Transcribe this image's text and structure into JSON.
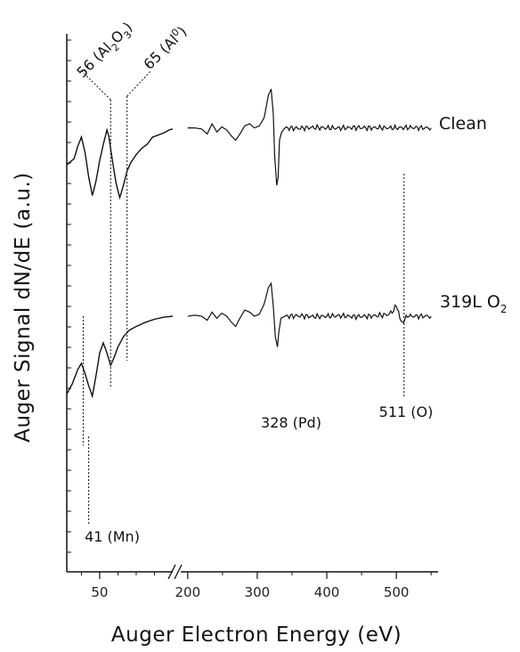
{
  "chart_data": {
    "type": "line",
    "xlabel": "Auger Electron Energy (eV)",
    "ylabel": "Auger Signal dN/dE (a.u.)",
    "x_axis_break": true,
    "x_segments": [
      {
        "range": [
          32,
          90
        ],
        "ticks": [
          50
        ]
      },
      {
        "range": [
          190,
          560
        ],
        "ticks": [
          200,
          300,
          400,
          500
        ]
      }
    ],
    "grid": false,
    "series": [
      {
        "name": "Clean",
        "segment1": [
          [
            32,
            0
          ],
          [
            36,
            0.3
          ],
          [
            38,
            0.9
          ],
          [
            40,
            1.35
          ],
          [
            42,
            0.6
          ],
          [
            44,
            -0.6
          ],
          [
            46,
            -1.5
          ],
          [
            48,
            -0.8
          ],
          [
            50,
            0.2
          ],
          [
            52,
            1.0
          ],
          [
            54,
            1.7
          ],
          [
            55,
            1.4
          ],
          [
            57,
            0.2
          ],
          [
            59,
            -0.9
          ],
          [
            61,
            -1.6
          ],
          [
            63,
            -1.0
          ],
          [
            65,
            -0.3
          ],
          [
            67,
            0.1
          ],
          [
            70,
            0.5
          ],
          [
            73,
            0.8
          ],
          [
            76,
            1.0
          ],
          [
            79,
            1.35
          ],
          [
            82,
            1.45
          ],
          [
            85,
            1.55
          ],
          [
            88,
            1.7
          ],
          [
            90,
            1.75
          ]
        ],
        "segment2": [
          [
            200,
            1.8
          ],
          [
            210,
            1.8
          ],
          [
            220,
            1.75
          ],
          [
            228,
            1.5
          ],
          [
            235,
            2.0
          ],
          [
            242,
            1.6
          ],
          [
            249,
            1.85
          ],
          [
            256,
            1.7
          ],
          [
            263,
            1.4
          ],
          [
            269,
            1.2
          ],
          [
            275,
            1.5
          ],
          [
            282,
            1.9
          ],
          [
            289,
            2.0
          ],
          [
            296,
            1.8
          ],
          [
            303,
            1.9
          ],
          [
            310,
            2.3
          ],
          [
            316,
            3.4
          ],
          [
            320,
            3.7
          ],
          [
            323,
            2.5
          ],
          [
            325,
            0.5
          ],
          [
            328,
            -1.0
          ],
          [
            330,
            -0.6
          ],
          [
            332,
            1.2
          ],
          [
            335,
            1.6
          ],
          [
            340,
            1.8
          ],
          [
            360,
            1.78
          ],
          [
            380,
            1.82
          ],
          [
            400,
            1.8
          ],
          [
            420,
            1.79
          ],
          [
            440,
            1.82
          ],
          [
            460,
            1.8
          ],
          [
            480,
            1.81
          ],
          [
            500,
            1.8
          ],
          [
            520,
            1.82
          ],
          [
            540,
            1.8
          ],
          [
            550,
            1.8
          ]
        ]
      },
      {
        "name": "319L O2",
        "segment1": [
          [
            32,
            -3.8
          ],
          [
            35,
            -3.3
          ],
          [
            38,
            -2.6
          ],
          [
            40,
            -2.3
          ],
          [
            42,
            -2.8
          ],
          [
            44,
            -3.4
          ],
          [
            46,
            -3.9
          ],
          [
            48,
            -2.9
          ],
          [
            50,
            -1.8
          ],
          [
            52,
            -1.3
          ],
          [
            54,
            -1.8
          ],
          [
            56,
            -2.4
          ],
          [
            58,
            -2.0
          ],
          [
            60,
            -1.5
          ],
          [
            63,
            -1.0
          ],
          [
            66,
            -0.7
          ],
          [
            70,
            -0.5
          ],
          [
            75,
            -0.3
          ],
          [
            80,
            -0.15
          ],
          [
            85,
            -0.05
          ],
          [
            90,
            0.0
          ]
        ],
        "segment2": [
          [
            200,
            0.0
          ],
          [
            210,
            0.05
          ],
          [
            220,
            0.0
          ],
          [
            228,
            -0.2
          ],
          [
            235,
            0.2
          ],
          [
            242,
            -0.1
          ],
          [
            249,
            0.15
          ],
          [
            256,
            0.0
          ],
          [
            263,
            -0.3
          ],
          [
            269,
            -0.5
          ],
          [
            275,
            -0.1
          ],
          [
            282,
            0.3
          ],
          [
            289,
            0.2
          ],
          [
            296,
            0.0
          ],
          [
            303,
            0.1
          ],
          [
            310,
            0.6
          ],
          [
            316,
            1.4
          ],
          [
            320,
            1.6
          ],
          [
            323,
            0.5
          ],
          [
            326,
            -1.0
          ],
          [
            329,
            -1.5
          ],
          [
            331,
            -0.8
          ],
          [
            334,
            -0.1
          ],
          [
            340,
            0.0
          ],
          [
            360,
            0.02
          ],
          [
            380,
            -0.02
          ],
          [
            400,
            0.0
          ],
          [
            420,
            0.02
          ],
          [
            440,
            -0.02
          ],
          [
            460,
            0.0
          ],
          [
            480,
            0.05
          ],
          [
            490,
            0.1
          ],
          [
            496,
            0.3
          ],
          [
            500,
            0.5
          ],
          [
            505,
            0.0
          ],
          [
            509,
            -0.4
          ],
          [
            512,
            -0.2
          ],
          [
            516,
            0.05
          ],
          [
            520,
            0.0
          ],
          [
            540,
            0.0
          ],
          [
            550,
            0.0
          ]
        ]
      }
    ],
    "annotations": [
      {
        "text": "56 (Al",
        "sub1": "2",
        "mid": "O",
        "sub2": "3",
        "end": ")",
        "x": 56
      },
      {
        "text": "65 (Al",
        "sup": "0",
        "end": ")",
        "x": 65
      },
      {
        "text": "328 (Pd)",
        "x": 328
      },
      {
        "text": "511 (O)",
        "x": 511
      },
      {
        "text": "41 (Mn)",
        "x": 41
      }
    ],
    "series_labels": {
      "clean": "Clean",
      "o2_main": "319L O",
      "o2_sub": "2"
    }
  }
}
